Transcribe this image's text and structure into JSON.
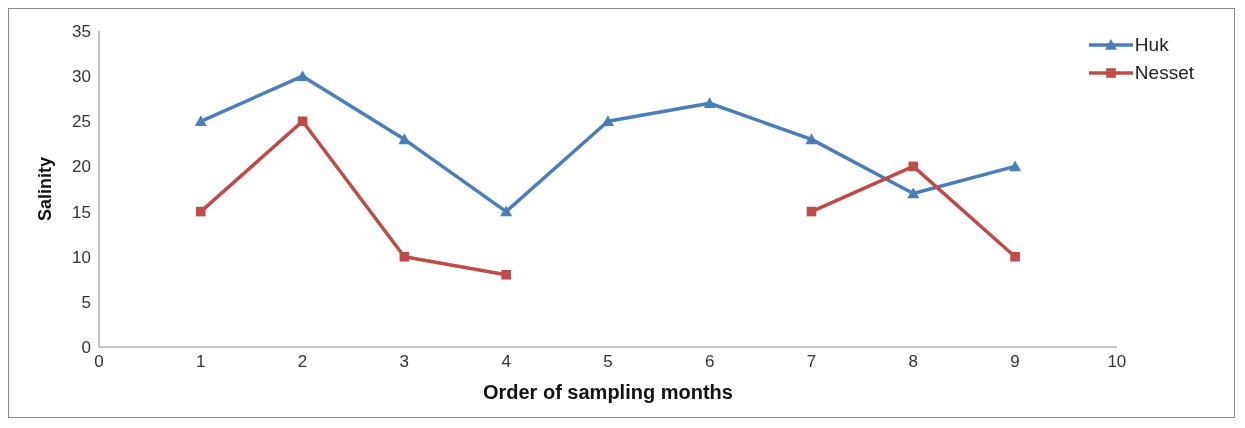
{
  "chart_data": {
    "type": "line",
    "xlabel": "Order of sampling months",
    "ylabel": "Salinity",
    "x": [
      1,
      2,
      3,
      4,
      5,
      6,
      7,
      8,
      9
    ],
    "series": [
      {
        "name": "Huk",
        "color": "#4a7ebb",
        "marker": "triangle",
        "values": [
          25,
          30,
          23,
          15,
          25,
          27,
          23,
          17,
          20
        ]
      },
      {
        "name": "Nesset",
        "color": "#be4b48",
        "marker": "square",
        "values": [
          15,
          25,
          10,
          8,
          null,
          null,
          15,
          20,
          10
        ]
      }
    ],
    "xlim": [
      0,
      10
    ],
    "xticks": [
      0,
      1,
      2,
      3,
      4,
      5,
      6,
      7,
      8,
      9,
      10
    ],
    "ylim": [
      0,
      35
    ],
    "yticks": [
      0,
      5,
      10,
      15,
      20,
      25,
      30,
      35
    ],
    "grid": false,
    "legend": "top right"
  }
}
